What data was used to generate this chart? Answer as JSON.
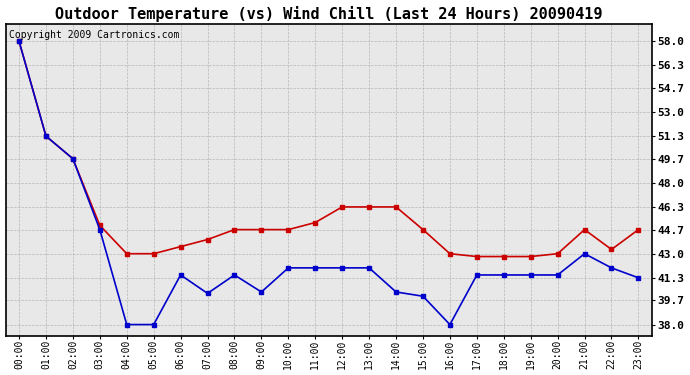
{
  "title": "Outdoor Temperature (vs) Wind Chill (Last 24 Hours) 20090419",
  "copyright_text": "Copyright 2009 Cartronics.com",
  "x_labels": [
    "00:00",
    "01:00",
    "02:00",
    "03:00",
    "04:00",
    "05:00",
    "06:00",
    "07:00",
    "08:00",
    "09:00",
    "10:00",
    "11:00",
    "12:00",
    "13:00",
    "14:00",
    "15:00",
    "16:00",
    "17:00",
    "18:00",
    "19:00",
    "20:00",
    "21:00",
    "22:00",
    "23:00"
  ],
  "temp_red": [
    58.0,
    51.3,
    49.7,
    45.0,
    43.0,
    43.0,
    43.5,
    44.0,
    44.7,
    44.7,
    44.7,
    45.2,
    46.3,
    46.3,
    46.3,
    44.7,
    43.0,
    42.8,
    42.8,
    42.8,
    43.0,
    44.7,
    43.3,
    44.7
  ],
  "wind_chill_blue": [
    58.0,
    51.3,
    49.7,
    44.7,
    38.0,
    38.0,
    41.5,
    40.2,
    41.5,
    40.3,
    42.0,
    42.0,
    42.0,
    42.0,
    40.3,
    40.0,
    38.0,
    41.5,
    41.5,
    41.5,
    41.5,
    43.0,
    42.0,
    41.3
  ],
  "y_ticks": [
    38.0,
    39.7,
    41.3,
    43.0,
    44.7,
    46.3,
    48.0,
    49.7,
    51.3,
    53.0,
    54.7,
    56.3,
    58.0
  ],
  "ylim": [
    37.2,
    59.2
  ],
  "xlim": [
    -0.5,
    23.5
  ],
  "bg_color": "#ffffff",
  "plot_bg_color": "#e8e8e8",
  "red_color": "#cc0000",
  "blue_color": "#0000cc",
  "grid_color": "#aaaaaa",
  "title_fontsize": 11,
  "copyright_fontsize": 7,
  "tick_label_fontsize": 8,
  "xtick_fontsize": 7
}
